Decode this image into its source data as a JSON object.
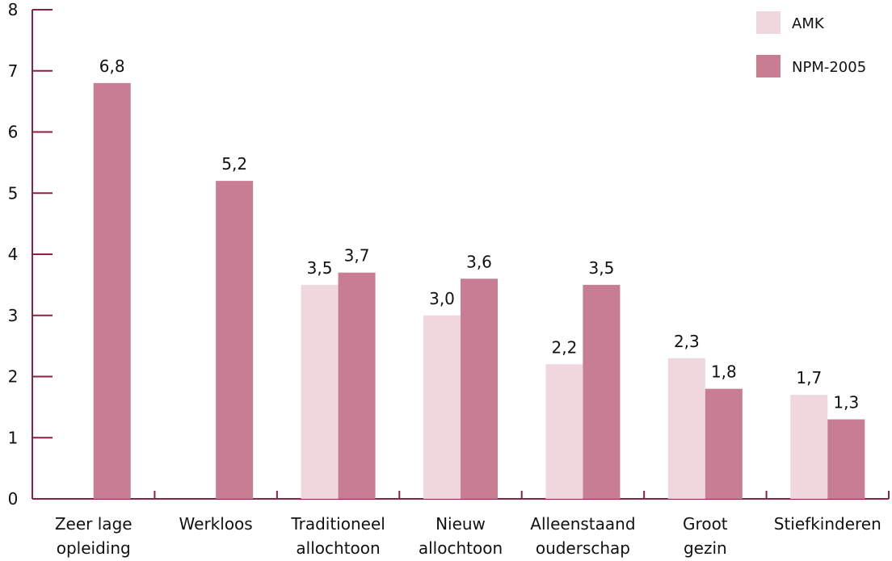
{
  "chart_data": {
    "type": "bar",
    "title": "",
    "xlabel": "",
    "ylabel": "",
    "ylim": [
      0,
      8
    ],
    "yticks": [
      0,
      1,
      2,
      3,
      4,
      5,
      6,
      7,
      8
    ],
    "categories": [
      [
        "Zeer lage",
        "opleiding"
      ],
      [
        "Werkloos"
      ],
      [
        "Traditioneel",
        "allochtoon"
      ],
      [
        "Nieuw",
        "allochtoon"
      ],
      [
        "Alleenstaand",
        "ouderschap"
      ],
      [
        "Groot",
        "gezin"
      ],
      [
        "Stiefkinderen"
      ]
    ],
    "series": [
      {
        "name": "AMK",
        "color": "#efd7dd",
        "values": [
          null,
          null,
          3.5,
          3.0,
          2.2,
          2.3,
          1.7
        ],
        "labels": [
          "",
          "",
          "3,5",
          "3,0",
          "2,2",
          "2,3",
          "1,7"
        ]
      },
      {
        "name": "NPM-2005",
        "color": "#c97d92",
        "values": [
          6.8,
          5.2,
          3.7,
          3.6,
          3.5,
          1.8,
          1.3
        ],
        "labels": [
          "6,8",
          "5,2",
          "3,7",
          "3,6",
          "3,5",
          "1,8",
          "1,3"
        ]
      }
    ],
    "axis_color": "#8e1f45",
    "grid": false,
    "legend_position": "top-right"
  }
}
